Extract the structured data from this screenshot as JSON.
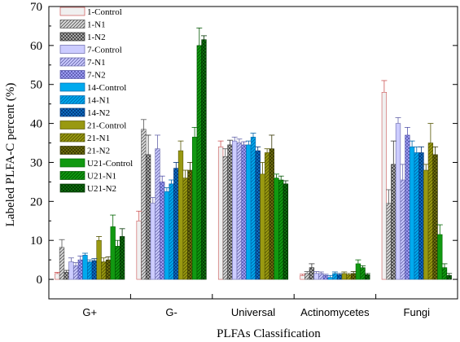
{
  "chart_data": {
    "type": "bar",
    "title": "",
    "xlabel": "PLFAs Classification",
    "ylabel": "Labeled PLFA-C percent (%)",
    "ylim": [
      -5,
      70
    ],
    "yticks": [
      0,
      10,
      20,
      30,
      40,
      50,
      60,
      70
    ],
    "grid": false,
    "legend_position": "top-left",
    "categories": [
      "G+",
      "G-",
      "Universal",
      "Actinomycetes",
      "Fungi"
    ],
    "series": [
      {
        "name": "1-Control",
        "color": "#cc5555",
        "fill": "#f0f0f0",
        "pattern": "none",
        "values": [
          1.5,
          15,
          34,
          1.0,
          48
        ],
        "errors": [
          0.3,
          2.5,
          1.5,
          0.3,
          3
        ]
      },
      {
        "name": "1-N1",
        "color": "#555555",
        "fill": "#dcdcdc",
        "pattern": "diag",
        "values": [
          8.2,
          38.5,
          31.5,
          1.5,
          19.5
        ],
        "errors": [
          2.0,
          2.5,
          2.0,
          0.5,
          3.5
        ]
      },
      {
        "name": "1-N2",
        "color": "#333333",
        "fill": "#c0c0c0",
        "pattern": "cross",
        "values": [
          1.8,
          32,
          34.5,
          3.0,
          29.5
        ],
        "errors": [
          0.5,
          5,
          1.2,
          1.0,
          6
        ]
      },
      {
        "name": "7-Control",
        "color": "#6666aa",
        "fill": "#ccccff",
        "pattern": "none",
        "values": [
          4.5,
          19.5,
          35.5,
          1.5,
          40
        ],
        "errors": [
          1.0,
          1.5,
          1.0,
          0.5,
          1.5
        ]
      },
      {
        "name": "7-N1",
        "color": "#6666aa",
        "fill": "#ccccff",
        "pattern": "diag",
        "values": [
          3.5,
          33.5,
          35,
          1.5,
          25.5
        ],
        "errors": [
          0.8,
          3.5,
          1.0,
          0.4,
          4
        ]
      },
      {
        "name": "7-N2",
        "color": "#5555aa",
        "fill": "#aaaaff",
        "pattern": "cross",
        "values": [
          5.0,
          25,
          34.5,
          1.0,
          37
        ],
        "errors": [
          1.0,
          1.5,
          0.8,
          0.3,
          2
        ]
      },
      {
        "name": "14-Control",
        "color": "#0066aa",
        "fill": "#00aaee",
        "pattern": "none",
        "values": [
          6.2,
          22.5,
          34.5,
          0.5,
          34
        ],
        "errors": [
          0.5,
          1.0,
          1.0,
          0.5,
          1.5
        ]
      },
      {
        "name": "14-N1",
        "color": "#0066aa",
        "fill": "#00aaee",
        "pattern": "diag",
        "values": [
          4.5,
          24.5,
          36.5,
          1.5,
          32.5
        ],
        "errors": [
          0.5,
          1.0,
          1.0,
          0.4,
          1.5
        ]
      },
      {
        "name": "14-N2",
        "color": "#003377",
        "fill": "#1177cc",
        "pattern": "cross",
        "values": [
          4.8,
          28.5,
          33,
          1.2,
          32.5
        ],
        "errors": [
          0.5,
          1.5,
          1.0,
          0.3,
          1.5
        ]
      },
      {
        "name": "21-Control",
        "color": "#555500",
        "fill": "#999911",
        "pattern": "none",
        "values": [
          10,
          33,
          27,
          1.5,
          28
        ],
        "errors": [
          1.0,
          2.5,
          3.0,
          0.4,
          1.5
        ]
      },
      {
        "name": "21-N1",
        "color": "#555500",
        "fill": "#999911",
        "pattern": "diag",
        "values": [
          4.5,
          26,
          32.5,
          1.2,
          35
        ],
        "errors": [
          1.0,
          2.0,
          1.0,
          0.3,
          5
        ]
      },
      {
        "name": "21-N2",
        "color": "#333300",
        "fill": "#777711",
        "pattern": "cross",
        "values": [
          5.0,
          28,
          33.5,
          1.5,
          32
        ],
        "errors": [
          0.8,
          2.0,
          3.5,
          0.5,
          2
        ]
      },
      {
        "name": "U21-Control",
        "color": "#006600",
        "fill": "#119911",
        "pattern": "none",
        "values": [
          13.5,
          36.5,
          26,
          4.0,
          11.5
        ],
        "errors": [
          3.0,
          2.5,
          1.0,
          1.0,
          2.5
        ]
      },
      {
        "name": "U21-N1",
        "color": "#005500",
        "fill": "#119911",
        "pattern": "diag",
        "values": [
          8.5,
          60,
          25.5,
          3.0,
          3
        ],
        "errors": [
          1.5,
          4.5,
          1.0,
          0.5,
          1.0
        ]
      },
      {
        "name": "U21-N2",
        "color": "#003300",
        "fill": "#117711",
        "pattern": "cross",
        "values": [
          11,
          61.5,
          24.5,
          1.2,
          1
        ],
        "errors": [
          2.0,
          1.0,
          0.8,
          0.3,
          0.5
        ]
      }
    ]
  }
}
